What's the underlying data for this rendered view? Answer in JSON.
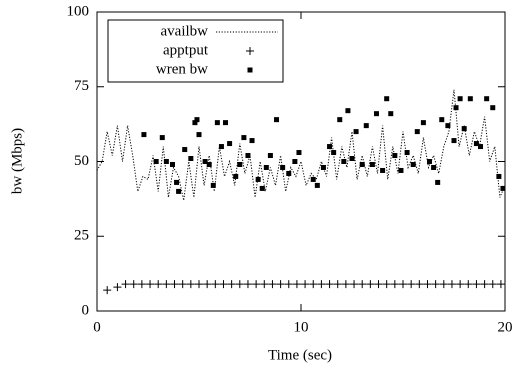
{
  "chart_data": {
    "type": "line",
    "xlabel": "Time (sec)",
    "ylabel": "bw (Mbps)",
    "xlim": [
      0,
      20
    ],
    "xticks": [
      0,
      10,
      20
    ],
    "ylim": [
      0,
      100
    ],
    "yticks": [
      0,
      25,
      50,
      75,
      100
    ],
    "legend": "upper left",
    "series": [
      {
        "name": "availbw",
        "color": "#000000",
        "marker": "dotted-line",
        "x": [
          0,
          0.25,
          0.5,
          0.75,
          1,
          1.25,
          1.5,
          1.75,
          2,
          2.25,
          2.5,
          2.75,
          3,
          3.25,
          3.5,
          3.75,
          4,
          4.25,
          4.5,
          4.75,
          5,
          5.25,
          5.5,
          5.75,
          6,
          6.25,
          6.5,
          6.75,
          7,
          7.25,
          7.5,
          7.75,
          8,
          8.25,
          8.5,
          8.75,
          9,
          9.25,
          9.5,
          9.75,
          10,
          10.25,
          10.5,
          10.75,
          11,
          11.25,
          11.5,
          11.75,
          12,
          12.25,
          12.5,
          12.75,
          13,
          13.25,
          13.5,
          13.75,
          14,
          14.25,
          14.5,
          14.75,
          15,
          15.25,
          15.5,
          15.75,
          16,
          16.25,
          16.5,
          16.75,
          17,
          17.25,
          17.5,
          17.75,
          18,
          18.25,
          18.5,
          18.75,
          19,
          19.25,
          19.5,
          19.75,
          20
        ],
        "values": [
          47,
          50,
          60,
          52,
          62,
          50,
          62,
          52,
          40,
          45,
          44,
          52,
          40,
          55,
          38,
          48,
          45,
          37,
          50,
          38,
          55,
          42,
          52,
          40,
          55,
          45,
          50,
          42,
          56,
          46,
          52,
          38,
          50,
          40,
          48,
          42,
          52,
          40,
          48,
          45,
          50,
          42,
          46,
          44,
          50,
          45,
          58,
          44,
          55,
          48,
          60,
          44,
          52,
          45,
          55,
          46,
          62,
          44,
          55,
          46,
          60,
          48,
          52,
          46,
          58,
          48,
          52,
          46,
          55,
          60,
          74,
          55,
          62,
          52,
          60,
          55,
          65,
          50,
          55,
          38,
          42
        ]
      },
      {
        "name": "apptput",
        "color": "#000000",
        "marker": "plus",
        "x": [
          0.5,
          1.0,
          1.4,
          1.8,
          2.2,
          2.6,
          3.0,
          3.4,
          3.8,
          4.2,
          4.6,
          5.0,
          5.4,
          5.8,
          6.2,
          6.6,
          7.0,
          7.4,
          7.8,
          8.2,
          8.6,
          9.0,
          9.4,
          9.8,
          10.2,
          10.6,
          11.0,
          11.4,
          11.8,
          12.2,
          12.6,
          13.0,
          13.4,
          13.8,
          14.2,
          14.6,
          15.0,
          15.4,
          15.8,
          16.2,
          16.6,
          17.0,
          17.4,
          17.8,
          18.2,
          18.6,
          19.0,
          19.4,
          19.8
        ],
        "values": [
          7,
          8,
          9,
          9,
          9,
          9,
          9,
          9,
          9,
          9,
          9,
          9,
          9,
          9,
          9,
          9,
          9,
          9,
          9,
          9,
          9,
          9,
          9,
          9,
          9,
          9,
          9,
          9,
          9,
          9,
          9,
          9,
          9,
          9,
          9,
          9,
          9,
          9,
          9,
          9,
          9,
          9,
          9,
          9,
          9,
          9,
          9,
          9,
          9
        ]
      },
      {
        "name": "wren bw",
        "color": "#000000",
        "marker": "square",
        "x": [
          2.3,
          2.9,
          3.2,
          3.4,
          3.7,
          3.9,
          4.0,
          4.3,
          4.6,
          4.8,
          4.9,
          5.0,
          5.3,
          5.5,
          5.7,
          5.9,
          6.1,
          6.3,
          6.5,
          6.8,
          7.0,
          7.2,
          7.4,
          7.6,
          7.9,
          8.1,
          8.3,
          8.5,
          8.8,
          9.1,
          9.4,
          9.7,
          9.9,
          10.6,
          10.8,
          11.1,
          11.4,
          11.6,
          11.9,
          12.1,
          12.3,
          12.5,
          12.7,
          13.0,
          13.2,
          13.5,
          13.7,
          14.0,
          14.2,
          14.4,
          14.6,
          14.9,
          15.2,
          15.5,
          15.7,
          16.0,
          16.3,
          16.5,
          16.7,
          16.9,
          17.2,
          17.5,
          17.6,
          17.8,
          18.0,
          18.3,
          18.6,
          18.8,
          19.1,
          19.4,
          19.7,
          19.9
        ],
        "values": [
          59,
          50,
          58,
          50,
          49,
          43,
          40,
          54,
          51,
          63,
          64,
          59,
          50,
          49,
          42,
          63,
          55,
          63,
          56,
          45,
          49,
          58,
          52,
          57,
          44,
          41,
          48,
          52,
          64,
          48,
          46,
          50,
          53,
          44,
          42,
          48,
          55,
          53,
          64,
          50,
          67,
          51,
          60,
          49,
          62,
          49,
          66,
          47,
          71,
          66,
          52,
          47,
          53,
          49,
          60,
          63,
          50,
          48,
          43,
          64,
          62,
          57,
          68,
          71,
          61,
          71,
          56,
          55,
          71,
          68,
          45,
          41
        ]
      }
    ]
  }
}
